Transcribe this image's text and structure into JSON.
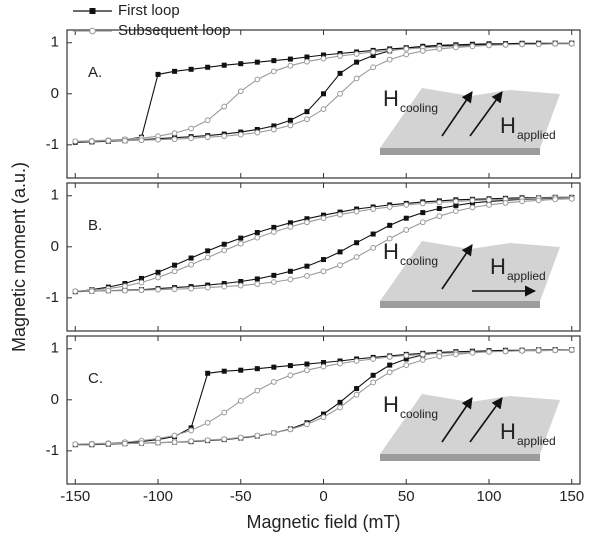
{
  "chart_data": [
    {
      "type": "line",
      "label": "A.",
      "legend": "upper left",
      "annotations": [
        "H",
        "cooling",
        "H",
        "applied"
      ],
      "xlim": [
        -155,
        155
      ],
      "xticks": [
        -150,
        -100,
        -50,
        0,
        50,
        100,
        150
      ],
      "ylim": [
        -1.65,
        1.25
      ],
      "yticks": [
        -1,
        0,
        1
      ],
      "x": [
        150,
        140,
        130,
        120,
        110,
        100,
        90,
        80,
        70,
        60,
        50,
        40,
        30,
        20,
        10,
        0,
        -10,
        -20,
        -30,
        -40,
        -50,
        -60,
        -70,
        -80,
        -90,
        -100,
        -110,
        -120,
        -130,
        -140,
        -150,
        -140,
        -130,
        -120,
        -110,
        -100,
        -90,
        -80,
        -70,
        -60,
        -50,
        -40,
        -30,
        -20,
        -10,
        0,
        10,
        20,
        30,
        40,
        50,
        60,
        70,
        80,
        90,
        100,
        110,
        120,
        130,
        140,
        150
      ],
      "series": [
        {
          "name": "First loop",
          "color": "#111111",
          "values": [
            0.99,
            0.99,
            0.99,
            0.98,
            0.98,
            0.97,
            0.96,
            0.95,
            0.94,
            0.92,
            0.9,
            0.88,
            0.85,
            0.82,
            0.79,
            0.76,
            0.72,
            0.68,
            0.65,
            0.62,
            0.59,
            0.56,
            0.52,
            0.48,
            0.44,
            0.38,
            -0.85,
            -0.9,
            -0.92,
            -0.94,
            -0.95,
            -0.94,
            -0.93,
            -0.92,
            -0.9,
            -0.88,
            -0.86,
            -0.84,
            -0.82,
            -0.79,
            -0.75,
            -0.7,
            -0.63,
            -0.52,
            -0.35,
            0.0,
            0.4,
            0.62,
            0.75,
            0.84,
            0.9,
            0.93,
            0.95,
            0.96,
            0.97,
            0.98,
            0.98,
            0.99,
            0.99,
            0.99,
            0.99
          ]
        },
        {
          "name": "Subsequent loop",
          "color": "#9a9a9a",
          "values": [
            0.98,
            0.98,
            0.97,
            0.97,
            0.96,
            0.95,
            0.94,
            0.93,
            0.92,
            0.9,
            0.88,
            0.85,
            0.82,
            0.78,
            0.74,
            0.69,
            0.63,
            0.55,
            0.44,
            0.28,
            0.05,
            -0.25,
            -0.52,
            -0.68,
            -0.77,
            -0.83,
            -0.87,
            -0.89,
            -0.91,
            -0.92,
            -0.93,
            -0.93,
            -0.92,
            -0.92,
            -0.91,
            -0.9,
            -0.89,
            -0.87,
            -0.85,
            -0.83,
            -0.8,
            -0.76,
            -0.7,
            -0.62,
            -0.5,
            -0.3,
            0.0,
            0.3,
            0.52,
            0.67,
            0.77,
            0.84,
            0.88,
            0.91,
            0.93,
            0.95,
            0.96,
            0.97,
            0.97,
            0.98,
            0.98
          ]
        }
      ]
    },
    {
      "type": "line",
      "label": "B.",
      "ylabel": "Magnetic moment (a.u.)",
      "annotations": [
        "H",
        "cooling",
        "H",
        "applied"
      ],
      "xlim": [
        -155,
        155
      ],
      "xticks": [
        -150,
        -100,
        -50,
        0,
        50,
        100,
        150
      ],
      "ylim": [
        -1.65,
        1.25
      ],
      "yticks": [
        -1,
        0,
        1
      ],
      "x": [
        150,
        140,
        130,
        120,
        110,
        100,
        90,
        80,
        70,
        60,
        50,
        40,
        30,
        20,
        10,
        0,
        -10,
        -20,
        -30,
        -40,
        -50,
        -60,
        -70,
        -80,
        -90,
        -100,
        -110,
        -120,
        -130,
        -140,
        -150,
        -140,
        -130,
        -120,
        -110,
        -100,
        -90,
        -80,
        -70,
        -60,
        -50,
        -40,
        -30,
        -20,
        -10,
        0,
        10,
        20,
        30,
        40,
        50,
        60,
        70,
        80,
        90,
        100,
        110,
        120,
        130,
        140,
        150
      ],
      "series": [
        {
          "color": "#111111",
          "values": [
            0.97,
            0.97,
            0.96,
            0.96,
            0.95,
            0.94,
            0.93,
            0.92,
            0.9,
            0.88,
            0.85,
            0.82,
            0.78,
            0.74,
            0.68,
            0.62,
            0.55,
            0.47,
            0.38,
            0.28,
            0.17,
            0.05,
            -0.08,
            -0.22,
            -0.36,
            -0.5,
            -0.62,
            -0.72,
            -0.79,
            -0.84,
            -0.88,
            -0.87,
            -0.86,
            -0.85,
            -0.84,
            -0.82,
            -0.8,
            -0.78,
            -0.75,
            -0.72,
            -0.68,
            -0.63,
            -0.56,
            -0.48,
            -0.38,
            -0.25,
            -0.1,
            0.08,
            0.25,
            0.42,
            0.56,
            0.67,
            0.75,
            0.81,
            0.86,
            0.89,
            0.91,
            0.93,
            0.94,
            0.95,
            0.96
          ]
        },
        {
          "color": "#9a9a9a",
          "values": [
            0.96,
            0.96,
            0.95,
            0.94,
            0.93,
            0.92,
            0.91,
            0.89,
            0.87,
            0.85,
            0.82,
            0.78,
            0.74,
            0.69,
            0.63,
            0.56,
            0.48,
            0.39,
            0.29,
            0.18,
            0.06,
            -0.07,
            -0.21,
            -0.35,
            -0.48,
            -0.6,
            -0.7,
            -0.77,
            -0.82,
            -0.85,
            -0.87,
            -0.87,
            -0.86,
            -0.86,
            -0.85,
            -0.84,
            -0.83,
            -0.82,
            -0.8,
            -0.78,
            -0.76,
            -0.73,
            -0.69,
            -0.64,
            -0.57,
            -0.48,
            -0.36,
            -0.2,
            -0.02,
            0.16,
            0.33,
            0.48,
            0.6,
            0.7,
            0.77,
            0.82,
            0.86,
            0.89,
            0.91,
            0.93,
            0.94
          ]
        }
      ]
    },
    {
      "type": "line",
      "label": "C.",
      "xlabel": "Magnetic field (mT)",
      "annotations": [
        "H",
        "cooling",
        "H",
        "applied"
      ],
      "xlim": [
        -155,
        155
      ],
      "xticks": [
        -150,
        -100,
        -50,
        0,
        50,
        100,
        150
      ],
      "ylim": [
        -1.65,
        1.25
      ],
      "yticks": [
        -1,
        0,
        1
      ],
      "x": [
        150,
        140,
        130,
        120,
        110,
        100,
        90,
        80,
        70,
        60,
        50,
        40,
        30,
        20,
        10,
        0,
        -10,
        -20,
        -30,
        -40,
        -50,
        -60,
        -70,
        -80,
        -90,
        -100,
        -110,
        -120,
        -130,
        -140,
        -150,
        -140,
        -130,
        -120,
        -110,
        -100,
        -90,
        -80,
        -70,
        -60,
        -50,
        -40,
        -30,
        -20,
        -10,
        0,
        10,
        20,
        30,
        40,
        50,
        60,
        70,
        80,
        90,
        100,
        110,
        120,
        130,
        140,
        150
      ],
      "series": [
        {
          "color": "#111111",
          "values": [
            0.98,
            0.98,
            0.97,
            0.97,
            0.96,
            0.96,
            0.95,
            0.94,
            0.93,
            0.91,
            0.89,
            0.86,
            0.83,
            0.8,
            0.76,
            0.73,
            0.7,
            0.67,
            0.64,
            0.61,
            0.58,
            0.56,
            0.52,
            -0.55,
            -0.72,
            -0.78,
            -0.82,
            -0.84,
            -0.86,
            -0.87,
            -0.88,
            -0.88,
            -0.87,
            -0.86,
            -0.85,
            -0.84,
            -0.83,
            -0.82,
            -0.8,
            -0.78,
            -0.75,
            -0.71,
            -0.65,
            -0.57,
            -0.45,
            -0.28,
            -0.05,
            0.22,
            0.48,
            0.68,
            0.8,
            0.88,
            0.92,
            0.94,
            0.95,
            0.96,
            0.97,
            0.97,
            0.98,
            0.98,
            0.98
          ]
        },
        {
          "color": "#9a9a9a",
          "values": [
            0.97,
            0.97,
            0.96,
            0.96,
            0.95,
            0.94,
            0.93,
            0.92,
            0.91,
            0.89,
            0.87,
            0.84,
            0.8,
            0.76,
            0.71,
            0.65,
            0.58,
            0.48,
            0.35,
            0.18,
            -0.02,
            -0.25,
            -0.45,
            -0.6,
            -0.7,
            -0.76,
            -0.8,
            -0.83,
            -0.85,
            -0.86,
            -0.87,
            -0.87,
            -0.86,
            -0.86,
            -0.85,
            -0.84,
            -0.83,
            -0.81,
            -0.79,
            -0.77,
            -0.74,
            -0.7,
            -0.65,
            -0.58,
            -0.48,
            -0.34,
            -0.15,
            0.1,
            0.34,
            0.54,
            0.68,
            0.78,
            0.85,
            0.89,
            0.92,
            0.94,
            0.95,
            0.96,
            0.97,
            0.97,
            0.98
          ]
        }
      ]
    }
  ]
}
